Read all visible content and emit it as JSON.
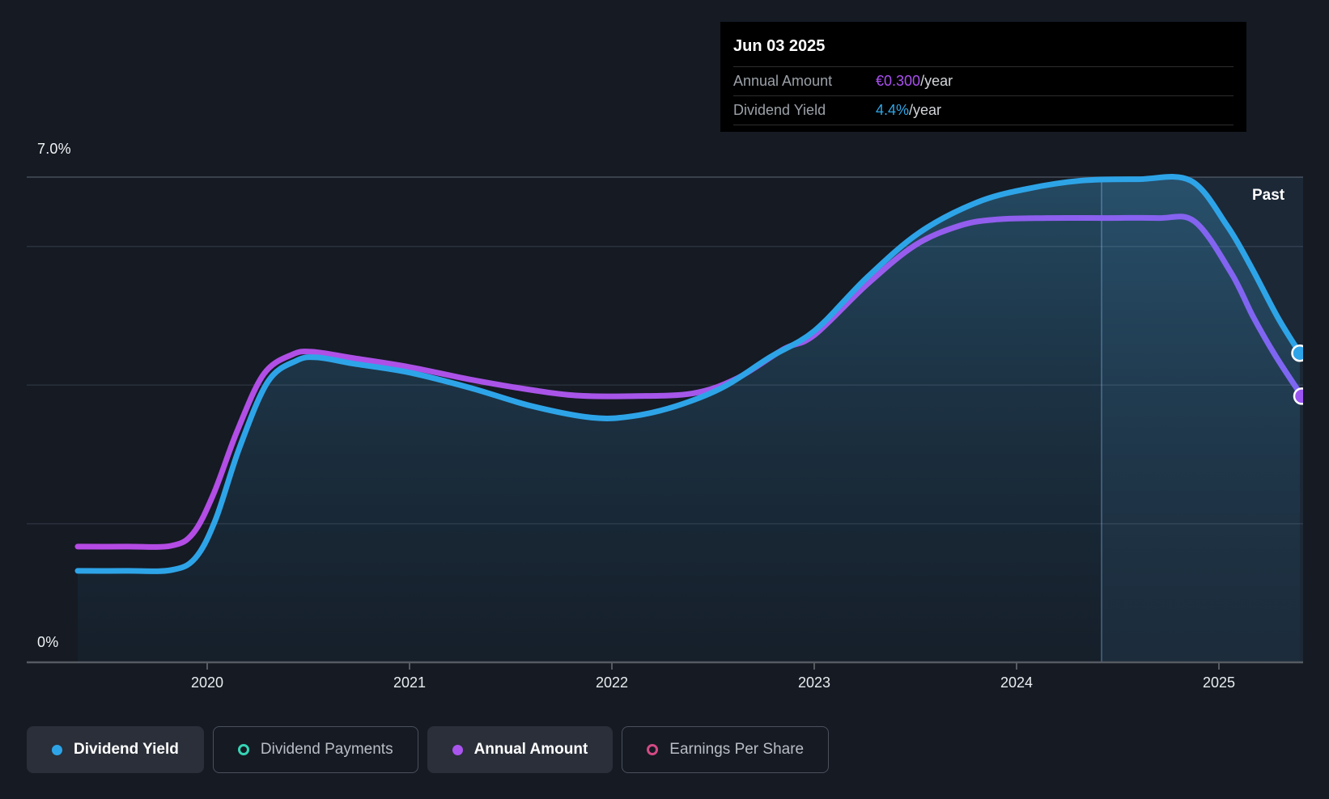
{
  "background": "#151a23",
  "past_label": "Past",
  "tooltip": {
    "date": "Jun 03 2025",
    "rows": [
      {
        "label": "Annual Amount",
        "value": "€0.300",
        "suffix": "/year",
        "color": "#aa4ff0"
      },
      {
        "label": "Dividend Yield",
        "value": "4.4%",
        "suffix": "/year",
        "color": "#2ea7e8"
      }
    ]
  },
  "y_axis": {
    "top_label": "7.0%",
    "bottom_label": "0%"
  },
  "x_axis": {
    "ticks": [
      "2020",
      "2021",
      "2022",
      "2023",
      "2024",
      "2025"
    ]
  },
  "legend": [
    {
      "label": "Dividend Yield",
      "color": "#2ea4e8",
      "style": "filled",
      "state": "active"
    },
    {
      "label": "Dividend Payments",
      "color": "#35d4b5",
      "style": "hollow",
      "state": "inactive"
    },
    {
      "label": "Annual Amount",
      "color": "#aa55ee",
      "style": "filled",
      "state": "active"
    },
    {
      "label": "Earnings Per Share",
      "color": "#d34a84",
      "style": "hollow",
      "state": "inactive"
    }
  ],
  "chart_data": {
    "type": "line",
    "x_range": [
      2019.36,
      2025.42
    ],
    "x_ticks": [
      2020,
      2021,
      2022,
      2023,
      2024,
      2025
    ],
    "y_axis_pct": {
      "min": 0,
      "max": 7.0,
      "top_label": "7.0%",
      "bottom_label": "0%",
      "gridlines": [
        0,
        2,
        4,
        6,
        7
      ]
    },
    "past_band_start_year": 2024.42,
    "hover_readout": {
      "date": "Jun 03 2025",
      "annual_amount": "€0.300/year",
      "dividend_yield": "4.4%/year"
    },
    "series": [
      {
        "name": "Annual Amount",
        "unit": "EUR plotted on unlabeled scale (percent-equivalent values below)",
        "end_value": "€0.300/year",
        "color_gradient": [
          "#b64ae4",
          "#a557ea",
          "#7d66f2"
        ],
        "marker_end": true,
        "points": [
          [
            2019.36,
            1.67
          ],
          [
            2019.6,
            1.67
          ],
          [
            2019.82,
            1.68
          ],
          [
            2019.93,
            1.86
          ],
          [
            2020.03,
            2.42
          ],
          [
            2020.15,
            3.35
          ],
          [
            2020.28,
            4.16
          ],
          [
            2020.42,
            4.44
          ],
          [
            2020.52,
            4.48
          ],
          [
            2020.72,
            4.39
          ],
          [
            2021.0,
            4.26
          ],
          [
            2021.3,
            4.08
          ],
          [
            2021.6,
            3.93
          ],
          [
            2021.82,
            3.85
          ],
          [
            2022.1,
            3.84
          ],
          [
            2022.4,
            3.88
          ],
          [
            2022.62,
            4.1
          ],
          [
            2022.85,
            4.52
          ],
          [
            2023.0,
            4.72
          ],
          [
            2023.26,
            5.45
          ],
          [
            2023.5,
            6.02
          ],
          [
            2023.72,
            6.3
          ],
          [
            2023.9,
            6.39
          ],
          [
            2024.15,
            6.41
          ],
          [
            2024.45,
            6.41
          ],
          [
            2024.7,
            6.41
          ],
          [
            2024.88,
            6.36
          ],
          [
            2025.06,
            5.62
          ],
          [
            2025.17,
            4.98
          ],
          [
            2025.28,
            4.42
          ],
          [
            2025.41,
            3.84
          ]
        ]
      },
      {
        "name": "Dividend Yield",
        "unit": "percent",
        "end_value": "4.4%/year",
        "color": "#2ea4e8",
        "area_fill": true,
        "marker_end": true,
        "points": [
          [
            2019.36,
            1.32
          ],
          [
            2019.6,
            1.32
          ],
          [
            2019.82,
            1.33
          ],
          [
            2019.94,
            1.5
          ],
          [
            2020.04,
            2.05
          ],
          [
            2020.16,
            3.1
          ],
          [
            2020.3,
            4.05
          ],
          [
            2020.44,
            4.35
          ],
          [
            2020.54,
            4.4
          ],
          [
            2020.72,
            4.31
          ],
          [
            2021.0,
            4.18
          ],
          [
            2021.3,
            3.96
          ],
          [
            2021.6,
            3.7
          ],
          [
            2021.9,
            3.53
          ],
          [
            2022.1,
            3.55
          ],
          [
            2022.32,
            3.7
          ],
          [
            2022.55,
            3.97
          ],
          [
            2022.78,
            4.4
          ],
          [
            2023.0,
            4.78
          ],
          [
            2023.26,
            5.55
          ],
          [
            2023.52,
            6.2
          ],
          [
            2023.8,
            6.63
          ],
          [
            2024.05,
            6.83
          ],
          [
            2024.32,
            6.95
          ],
          [
            2024.6,
            6.97
          ],
          [
            2024.86,
            6.95
          ],
          [
            2025.04,
            6.3
          ],
          [
            2025.16,
            5.7
          ],
          [
            2025.29,
            4.98
          ],
          [
            2025.4,
            4.46
          ]
        ]
      }
    ]
  }
}
